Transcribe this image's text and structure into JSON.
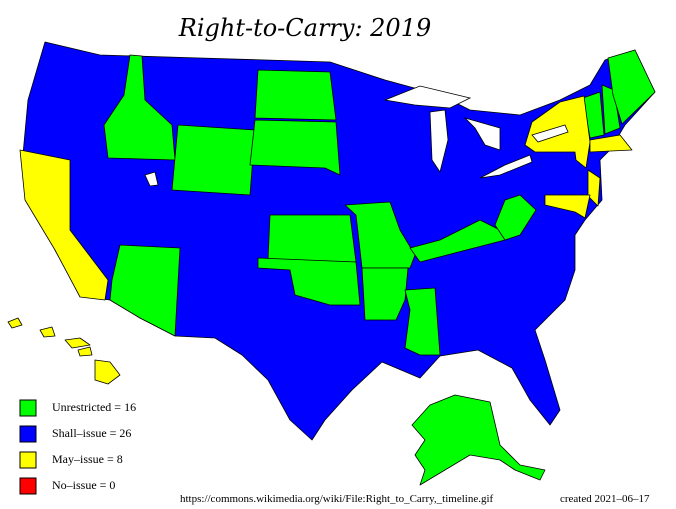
{
  "title": "Right-to-Carry: 2019",
  "legend": [
    {
      "label": "Unrestricted = 16",
      "color": "#00ff00"
    },
    {
      "label": "Shall–issue = 26",
      "color": "#0000ff"
    },
    {
      "label": "May–issue = 8",
      "color": "#ffff00"
    },
    {
      "label": "No–issue = 0",
      "color": "#ff0000"
    }
  ],
  "source": "https://commons.wikimedia.org/wiki/File:Right_to_Carry,_timeline.gif",
  "created": "created 2021–06–17"
}
